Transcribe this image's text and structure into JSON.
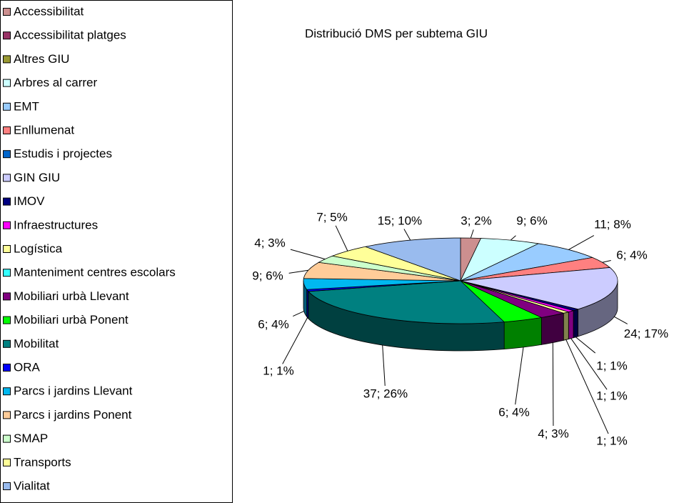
{
  "chart_data": {
    "type": "pie3d",
    "title": "Distribució  DMS per subtema GIU",
    "categories": [
      "Accessibilitat",
      "Accessibilitat platges",
      "Altres GIU",
      "Arbres al carrer",
      "EMT",
      "Enllumenat",
      "Estudis i projectes",
      "GIN GIU",
      "IMOV",
      "Infraestructures",
      "Logística",
      "Manteniment centres escolars",
      "Mobiliari urbà Llevant",
      "Mobiliari urbà Ponent",
      "Mobilitat",
      "ORA",
      "Parcs i jardins Llevant",
      "Parcs i jardins Ponent",
      "SMAP",
      "Transports",
      "Vialitat"
    ],
    "values": [
      3,
      0,
      0,
      9,
      11,
      6,
      0,
      24,
      1,
      1,
      1,
      0,
      4,
      6,
      37,
      1,
      6,
      9,
      4,
      7,
      15
    ],
    "value_labels": [
      "3; 2%",
      null,
      null,
      "9; 6%",
      "11; 8%",
      "6; 4%",
      null,
      "24; 17%",
      "1; 1%",
      "1; 1%",
      "1; 1%",
      null,
      "4; 3%",
      "6; 4%",
      "37; 26%",
      "1; 1%",
      "6; 4%",
      "9; 6%",
      "4; 3%",
      "7; 5%",
      "15; 10%"
    ],
    "colors": [
      "#cc8f8f",
      "#993366",
      "#999933",
      "#ccffff",
      "#99ccff",
      "#ff8080",
      "#0066cc",
      "#ccccff",
      "#000080",
      "#ff00ff",
      "#ffff99",
      "#33ffff",
      "#800080",
      "#00ff00",
      "#008080",
      "#0000ff",
      "#00b8f0",
      "#ffcc99",
      "#ccffcc",
      "#ffff99",
      "#99bbee"
    ],
    "legend": "left"
  }
}
